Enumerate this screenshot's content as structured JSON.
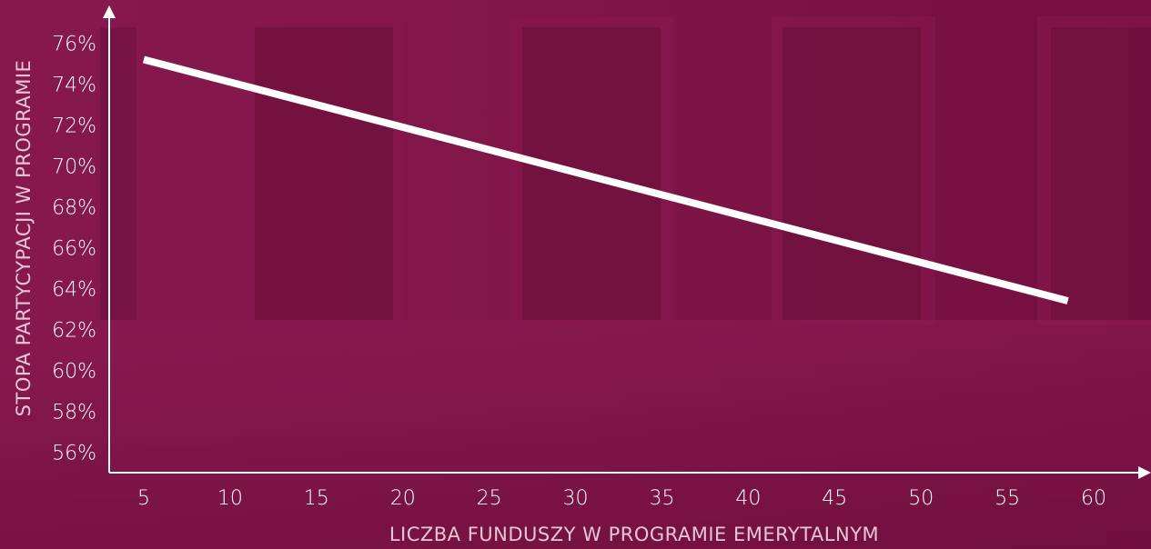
{
  "chart_data": {
    "type": "line",
    "xlabel": "LICZBA FUNDUSZY W PROGRAMIE EMERYTALNYM",
    "ylabel": "STOPA PARTYCYPACJI W PROGRAMIE",
    "x_ticks": [
      "5",
      "10",
      "15",
      "20",
      "25",
      "30",
      "35",
      "40",
      "45",
      "50",
      "55",
      "60"
    ],
    "y_ticks": [
      "56%",
      "58%",
      "60%",
      "62%",
      "64%",
      "66%",
      "68%",
      "70%",
      "72%",
      "74%",
      "76%"
    ],
    "xlim": [
      3,
      62
    ],
    "ylim": [
      55,
      77
    ],
    "series": [
      {
        "x": [
          5,
          58.5
        ],
        "y": [
          75.2,
          63.4
        ],
        "color": "#ffffff"
      }
    ],
    "grid": false,
    "background": "#7d1346"
  }
}
